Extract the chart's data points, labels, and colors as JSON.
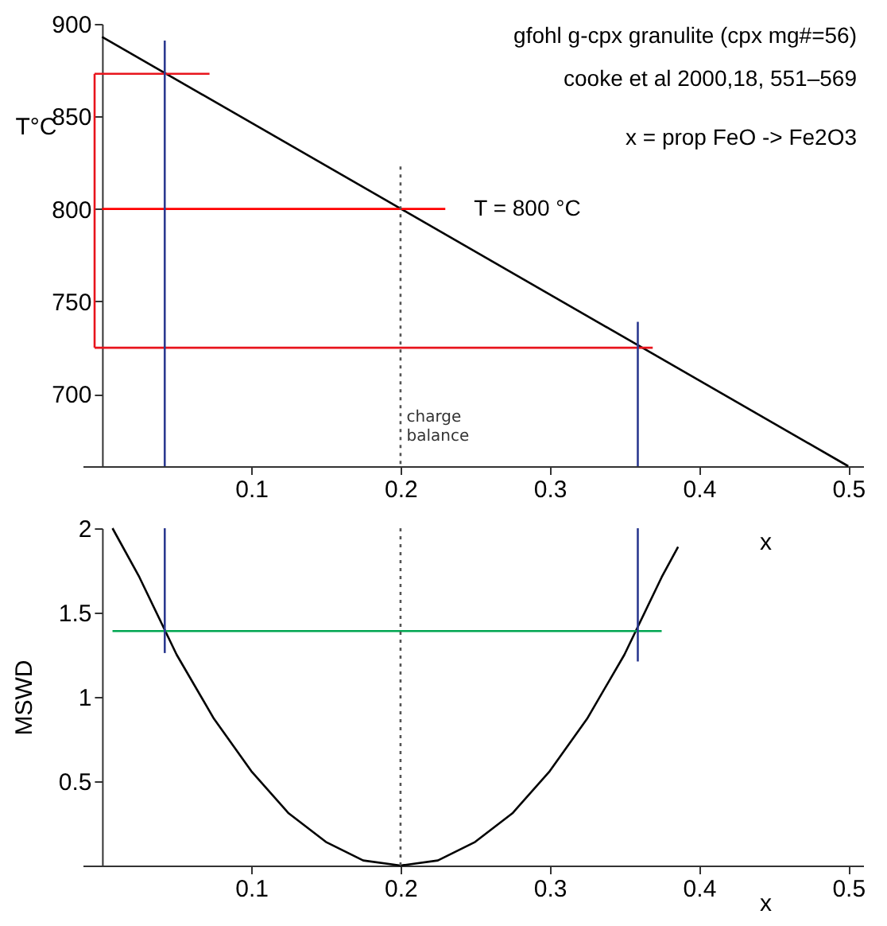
{
  "chart_data": [
    {
      "type": "line",
      "ylabel": "T°C",
      "xlabel": "x",
      "xlim": [
        -0.013,
        0.51
      ],
      "ylim": [
        661,
        900
      ],
      "xticks": [
        0.1,
        0.2,
        0.3,
        0.4,
        0.5
      ],
      "yticks": [
        700,
        750,
        800,
        850,
        900
      ],
      "grid": false,
      "marker": "none",
      "annotations": [
        "gfohl g-cpx granulite (cpx mg#=56)",
        "cooke et al 2000,18, 551–569",
        "x = prop FeO -> Fe2O3",
        {
          "text": "T = 800 °C",
          "x": 0.23,
          "y": 800
        },
        {
          "text": "charge balance",
          "x": 0.203,
          "y": 692
        }
      ],
      "series": [
        {
          "color": "#000000",
          "x": [
            0,
            0.5
          ],
          "values": [
            893,
            661
          ]
        },
        {
          "color": "#e8141c",
          "x": [
            -0.005,
            0.072
          ],
          "values": [
            873,
            873
          ]
        },
        {
          "color": "#e8141c",
          "x": [
            -0.005,
            -0.005
          ],
          "values": [
            873,
            725
          ]
        },
        {
          "color": "#e8141c",
          "x": [
            -0.005,
            0.369
          ],
          "values": [
            725,
            725
          ]
        },
        {
          "color": "#ff0000",
          "x": [
            0,
            0.23
          ],
          "values": [
            800,
            800
          ]
        },
        {
          "color": "#2b3990",
          "x": [
            0.042,
            0.042
          ],
          "values": [
            891,
            661
          ]
        },
        {
          "color": "#2b3990",
          "x": [
            0.359,
            0.359
          ],
          "values": [
            739,
            661
          ]
        },
        {
          "color": "#555555",
          "line_style": "dotted",
          "x": [
            0.2,
            0.2
          ],
          "values": [
            823,
            661
          ]
        }
      ]
    },
    {
      "type": "line",
      "ylabel": "MSWD",
      "xlabel": "x",
      "xlim": [
        -0.013,
        0.51
      ],
      "ylim": [
        0,
        2
      ],
      "xticks": [
        0.1,
        0.2,
        0.3,
        0.4,
        0.5
      ],
      "yticks": [
        0.5,
        1,
        1.5,
        2
      ],
      "grid": false,
      "marker": "none",
      "series": [
        {
          "color": "#000000",
          "x": [
            0.007,
            0.025,
            0.05,
            0.075,
            0.1,
            0.125,
            0.15,
            0.175,
            0.2,
            0.225,
            0.25,
            0.275,
            0.3,
            0.325,
            0.35,
            0.375,
            0.386
          ],
          "values": [
            2.0,
            1.71,
            1.25,
            0.87,
            0.56,
            0.31,
            0.14,
            0.03,
            0,
            0.03,
            0.14,
            0.31,
            0.56,
            0.87,
            1.25,
            1.71,
            1.89
          ]
        },
        {
          "color": "#00a651",
          "x": [
            0.007,
            0.375
          ],
          "values": [
            1.39,
            1.39
          ]
        },
        {
          "color": "#2b3990",
          "x": [
            0.042,
            0.042
          ],
          "values": [
            2.0,
            1.26
          ]
        },
        {
          "color": "#2b3990",
          "x": [
            0.359,
            0.359
          ],
          "values": [
            2.0,
            1.21
          ]
        },
        {
          "color": "#555555",
          "line_style": "dotted",
          "x": [
            0.2,
            0.2
          ],
          "values": [
            2.0,
            0
          ]
        }
      ]
    }
  ]
}
